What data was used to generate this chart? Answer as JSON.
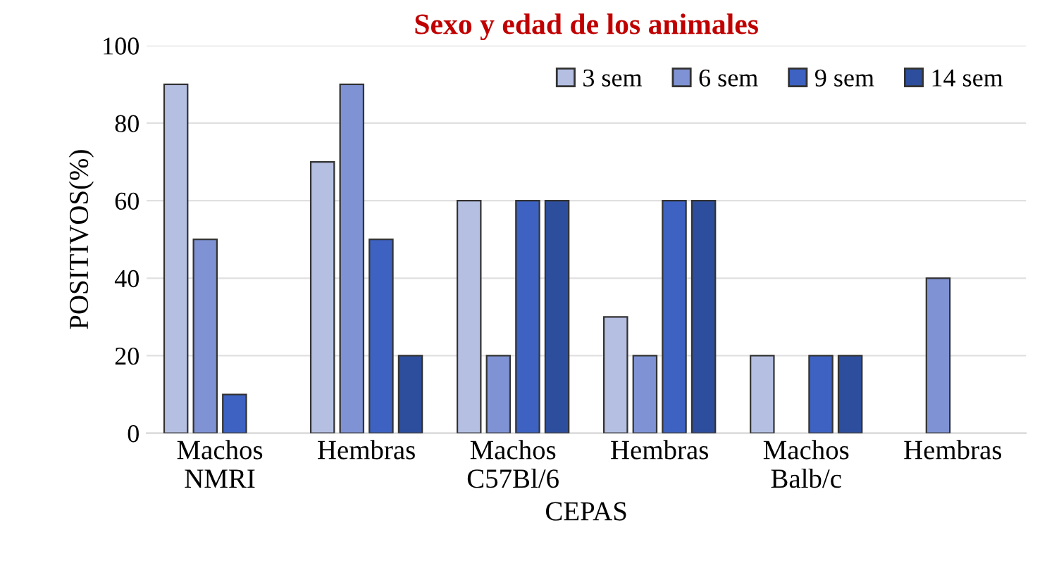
{
  "chart_data": {
    "type": "bar",
    "title": "Sexo y edad de los animales",
    "xlabel": "CEPAS",
    "ylabel": "POSITIVOS(%)",
    "categories": [
      "Machos\nNMRI",
      "Hembras",
      "Machos\nC57Bl/6",
      "Hembras",
      "Machos\nBalb/c",
      "Hembras"
    ],
    "series": [
      {
        "name": "3 sem",
        "color": "#b4bfe2",
        "values": [
          90,
          70,
          60,
          30,
          20,
          0
        ]
      },
      {
        "name": "6 sem",
        "color": "#7f92d4",
        "values": [
          50,
          90,
          20,
          20,
          0,
          40
        ]
      },
      {
        "name": "9 sem",
        "color": "#3d62c2",
        "values": [
          10,
          50,
          60,
          60,
          20,
          0
        ]
      },
      {
        "name": "14 sem",
        "color": "#2d4e9c",
        "values": [
          0,
          20,
          60,
          60,
          20,
          0
        ]
      }
    ],
    "ylim": [
      0,
      100
    ],
    "yticks": [
      0,
      20,
      40,
      60,
      80,
      100
    ],
    "grid": "y",
    "legend": "top right"
  }
}
